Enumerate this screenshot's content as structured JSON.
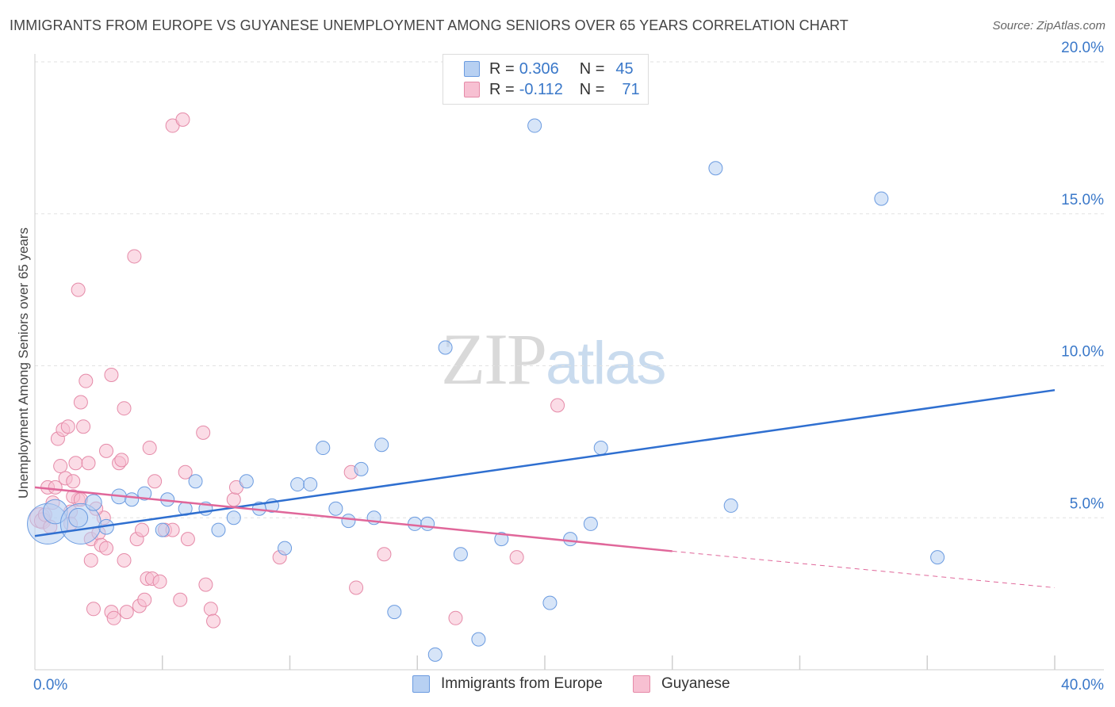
{
  "title": "IMMIGRANTS FROM EUROPE VS GUYANESE UNEMPLOYMENT AMONG SENIORS OVER 65 YEARS CORRELATION CHART",
  "source": "Source: ZipAtlas.com",
  "watermark": {
    "zip": "ZIP",
    "atlas": "atlas"
  },
  "legend": {
    "rows": [
      {
        "r_label": "R =",
        "r_value": "0.306",
        "n_label": "N =",
        "n_value": "45"
      },
      {
        "r_label": "R =",
        "r_value": "-0.112",
        "n_label": "N =",
        "n_value": "71"
      }
    ]
  },
  "chart_data": {
    "type": "scatter",
    "title": "IMMIGRANTS FROM EUROPE VS GUYANESE UNEMPLOYMENT AMONG SENIORS OVER 65 YEARS CORRELATION CHART",
    "xlabel": "",
    "ylabel": "Unemployment Among Seniors over 65 years",
    "xlim": [
      0,
      40
    ],
    "ylim": [
      0,
      20
    ],
    "x_tick_labels": [
      "0.0%",
      "40.0%"
    ],
    "y_ticks": [
      5,
      10,
      15,
      20
    ],
    "y_tick_labels": [
      "5.0%",
      "10.0%",
      "15.0%",
      "20.0%"
    ],
    "grid": true,
    "legend_position": "top-center",
    "colors": {
      "europe_fill": "#b7d0f2",
      "europe_stroke": "#6b9be0",
      "europe_line": "#2f6fd0",
      "guyanese_fill": "#f7c0d2",
      "guyanese_stroke": "#e58aa8",
      "guyanese_line": "#e0679a",
      "tick_text": "#3a78c9"
    },
    "series": [
      {
        "name": "Immigrants from Europe",
        "r": 0.306,
        "n": 45,
        "trend": {
          "x0": 0.0,
          "y0": 4.4,
          "x1": 40.0,
          "y1": 9.2
        },
        "points": [
          {
            "x": 0.5,
            "y": 4.8,
            "s": 3
          },
          {
            "x": 0.8,
            "y": 5.2,
            "s": 1.8
          },
          {
            "x": 1.8,
            "y": 4.8,
            "s": 3
          },
          {
            "x": 1.7,
            "y": 5.0,
            "s": 1.4
          },
          {
            "x": 2.3,
            "y": 5.5,
            "s": 1.2
          },
          {
            "x": 2.8,
            "y": 4.7,
            "s": 1.1
          },
          {
            "x": 3.3,
            "y": 5.7,
            "s": 1.1
          },
          {
            "x": 3.8,
            "y": 5.6,
            "s": 1
          },
          {
            "x": 4.3,
            "y": 5.8,
            "s": 1
          },
          {
            "x": 5.0,
            "y": 4.6,
            "s": 1
          },
          {
            "x": 5.2,
            "y": 5.6,
            "s": 1
          },
          {
            "x": 5.9,
            "y": 5.3,
            "s": 1
          },
          {
            "x": 6.3,
            "y": 6.2,
            "s": 1
          },
          {
            "x": 6.7,
            "y": 5.3,
            "s": 1
          },
          {
            "x": 7.2,
            "y": 4.6,
            "s": 1
          },
          {
            "x": 7.8,
            "y": 5.0,
            "s": 1
          },
          {
            "x": 8.3,
            "y": 6.2,
            "s": 1
          },
          {
            "x": 8.8,
            "y": 5.3,
            "s": 1
          },
          {
            "x": 9.3,
            "y": 5.4,
            "s": 1
          },
          {
            "x": 9.8,
            "y": 4.0,
            "s": 1
          },
          {
            "x": 10.3,
            "y": 6.1,
            "s": 1
          },
          {
            "x": 10.8,
            "y": 6.1,
            "s": 1
          },
          {
            "x": 11.3,
            "y": 7.3,
            "s": 1
          },
          {
            "x": 11.8,
            "y": 5.3,
            "s": 1
          },
          {
            "x": 12.3,
            "y": 4.9,
            "s": 1
          },
          {
            "x": 12.8,
            "y": 6.6,
            "s": 1
          },
          {
            "x": 13.3,
            "y": 5.0,
            "s": 1
          },
          {
            "x": 13.6,
            "y": 7.4,
            "s": 1
          },
          {
            "x": 14.1,
            "y": 1.9,
            "s": 1
          },
          {
            "x": 14.9,
            "y": 4.8,
            "s": 1
          },
          {
            "x": 15.4,
            "y": 4.8,
            "s": 1
          },
          {
            "x": 15.7,
            "y": 0.5,
            "s": 1
          },
          {
            "x": 16.1,
            "y": 10.6,
            "s": 1
          },
          {
            "x": 16.7,
            "y": 3.8,
            "s": 1
          },
          {
            "x": 17.4,
            "y": 1.0,
            "s": 1
          },
          {
            "x": 18.3,
            "y": 4.3,
            "s": 1
          },
          {
            "x": 19.6,
            "y": 17.9,
            "s": 1
          },
          {
            "x": 20.2,
            "y": 2.2,
            "s": 1
          },
          {
            "x": 21.0,
            "y": 4.3,
            "s": 1
          },
          {
            "x": 21.8,
            "y": 4.8,
            "s": 1
          },
          {
            "x": 22.2,
            "y": 7.3,
            "s": 1
          },
          {
            "x": 26.7,
            "y": 16.5,
            "s": 1
          },
          {
            "x": 27.3,
            "y": 5.4,
            "s": 1
          },
          {
            "x": 33.2,
            "y": 15.5,
            "s": 1
          },
          {
            "x": 35.4,
            "y": 3.7,
            "s": 1
          }
        ]
      },
      {
        "name": "Guyanese",
        "r": -0.112,
        "n": 71,
        "trend": {
          "x0": 0.0,
          "y0": 6.0,
          "x1": 25.0,
          "y1": 3.9
        },
        "trend_dashed": {
          "x0": 25.0,
          "y0": 3.9,
          "x1": 40.0,
          "y1": 2.7
        },
        "points": [
          {
            "x": 0.2,
            "y": 5.0,
            "s": 1.5
          },
          {
            "x": 0.3,
            "y": 4.9,
            "s": 1.2
          },
          {
            "x": 0.4,
            "y": 5.1,
            "s": 1
          },
          {
            "x": 0.5,
            "y": 6.0,
            "s": 1
          },
          {
            "x": 0.6,
            "y": 4.7,
            "s": 1
          },
          {
            "x": 0.7,
            "y": 5.5,
            "s": 1
          },
          {
            "x": 0.8,
            "y": 6.0,
            "s": 1
          },
          {
            "x": 0.9,
            "y": 7.6,
            "s": 1
          },
          {
            "x": 1.0,
            "y": 6.7,
            "s": 1
          },
          {
            "x": 1.1,
            "y": 7.9,
            "s": 1
          },
          {
            "x": 1.2,
            "y": 6.3,
            "s": 1
          },
          {
            "x": 1.3,
            "y": 8.0,
            "s": 1
          },
          {
            "x": 1.4,
            "y": 5.2,
            "s": 1
          },
          {
            "x": 1.5,
            "y": 6.2,
            "s": 1
          },
          {
            "x": 1.6,
            "y": 6.8,
            "s": 1
          },
          {
            "x": 1.7,
            "y": 5.6,
            "s": 1
          },
          {
            "x": 1.5,
            "y": 5.7,
            "s": 1
          },
          {
            "x": 1.9,
            "y": 8.0,
            "s": 1
          },
          {
            "x": 1.8,
            "y": 5.6,
            "s": 1
          },
          {
            "x": 1.7,
            "y": 12.5,
            "s": 1
          },
          {
            "x": 2.0,
            "y": 9.5,
            "s": 1
          },
          {
            "x": 1.8,
            "y": 8.8,
            "s": 1
          },
          {
            "x": 2.1,
            "y": 6.8,
            "s": 1
          },
          {
            "x": 2.2,
            "y": 4.3,
            "s": 1
          },
          {
            "x": 2.3,
            "y": 2.0,
            "s": 1
          },
          {
            "x": 2.2,
            "y": 3.6,
            "s": 1
          },
          {
            "x": 2.5,
            "y": 4.5,
            "s": 1
          },
          {
            "x": 2.6,
            "y": 4.1,
            "s": 1
          },
          {
            "x": 2.7,
            "y": 5.0,
            "s": 1
          },
          {
            "x": 2.8,
            "y": 4.0,
            "s": 1
          },
          {
            "x": 2.8,
            "y": 7.2,
            "s": 1
          },
          {
            "x": 3.0,
            "y": 9.7,
            "s": 1
          },
          {
            "x": 3.0,
            "y": 1.9,
            "s": 1
          },
          {
            "x": 3.1,
            "y": 1.7,
            "s": 1
          },
          {
            "x": 3.3,
            "y": 6.8,
            "s": 1
          },
          {
            "x": 3.4,
            "y": 6.9,
            "s": 1
          },
          {
            "x": 3.5,
            "y": 8.6,
            "s": 1
          },
          {
            "x": 3.5,
            "y": 3.6,
            "s": 1
          },
          {
            "x": 3.6,
            "y": 1.9,
            "s": 1
          },
          {
            "x": 3.9,
            "y": 13.6,
            "s": 1
          },
          {
            "x": 4.0,
            "y": 4.3,
            "s": 1
          },
          {
            "x": 4.1,
            "y": 2.1,
            "s": 1
          },
          {
            "x": 4.2,
            "y": 4.6,
            "s": 1
          },
          {
            "x": 4.3,
            "y": 2.3,
            "s": 1
          },
          {
            "x": 4.4,
            "y": 3.0,
            "s": 1
          },
          {
            "x": 4.5,
            "y": 7.3,
            "s": 1
          },
          {
            "x": 4.6,
            "y": 3.0,
            "s": 1
          },
          {
            "x": 4.7,
            "y": 6.2,
            "s": 1
          },
          {
            "x": 4.9,
            "y": 2.9,
            "s": 1
          },
          {
            "x": 5.1,
            "y": 4.6,
            "s": 1
          },
          {
            "x": 5.4,
            "y": 4.6,
            "s": 1
          },
          {
            "x": 5.4,
            "y": 17.9,
            "s": 1
          },
          {
            "x": 5.8,
            "y": 18.1,
            "s": 1
          },
          {
            "x": 5.9,
            "y": 6.5,
            "s": 1
          },
          {
            "x": 5.7,
            "y": 2.3,
            "s": 1
          },
          {
            "x": 6.0,
            "y": 4.3,
            "s": 1
          },
          {
            "x": 6.6,
            "y": 7.8,
            "s": 1
          },
          {
            "x": 6.7,
            "y": 2.8,
            "s": 1
          },
          {
            "x": 6.9,
            "y": 2.0,
            "s": 1
          },
          {
            "x": 7.0,
            "y": 1.6,
            "s": 1
          },
          {
            "x": 7.8,
            "y": 5.6,
            "s": 1
          },
          {
            "x": 7.9,
            "y": 6.0,
            "s": 1
          },
          {
            "x": 9.6,
            "y": 3.7,
            "s": 1
          },
          {
            "x": 12.4,
            "y": 6.5,
            "s": 1
          },
          {
            "x": 12.6,
            "y": 2.7,
            "s": 1
          },
          {
            "x": 13.7,
            "y": 3.8,
            "s": 1
          },
          {
            "x": 16.5,
            "y": 1.7,
            "s": 1
          },
          {
            "x": 18.9,
            "y": 3.7,
            "s": 1
          },
          {
            "x": 20.5,
            "y": 8.7,
            "s": 1
          },
          {
            "x": 1.4,
            "y": 4.8,
            "s": 1
          },
          {
            "x": 2.4,
            "y": 5.3,
            "s": 1
          }
        ]
      }
    ]
  }
}
